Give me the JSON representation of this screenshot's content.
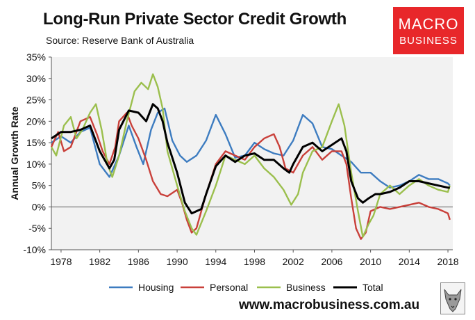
{
  "header": {
    "title": "Long-Run Private Sector Credit Growth",
    "subtitle": "Source: Reserve Bank of Australia"
  },
  "logo": {
    "line1": "MACRO",
    "line2": "BUSINESS",
    "color": "#e8272a"
  },
  "footer": {
    "website": "www.macrobusiness.com.au"
  },
  "chart_data": {
    "type": "line",
    "ylabel": "Annual Growth Rate",
    "xlabel": "",
    "xlim": [
      1977.0,
      2018.5
    ],
    "ylim": [
      -10,
      35
    ],
    "x_ticks": [
      "1978",
      "1982",
      "1986",
      "1990",
      "1994",
      "1998",
      "2002",
      "2006",
      "2010",
      "2014",
      "2018"
    ],
    "y_ticks": [
      "-10%",
      "-5%",
      "0%",
      "5%",
      "10%",
      "15%",
      "20%",
      "25%",
      "30%",
      "35%"
    ],
    "grid": false,
    "plot_background": "#f2f2f2",
    "legend_position": "bottom",
    "series": [
      {
        "name": "Housing",
        "color": "#3d7cc0",
        "points": [
          [
            1977.0,
            15
          ],
          [
            1978.0,
            16.5
          ],
          [
            1979.0,
            15
          ],
          [
            1980.0,
            17.5
          ],
          [
            1981.0,
            18.5
          ],
          [
            1982.0,
            10
          ],
          [
            1983.0,
            7
          ],
          [
            1984.0,
            12
          ],
          [
            1985.0,
            19
          ],
          [
            1985.8,
            14
          ],
          [
            1986.5,
            10
          ],
          [
            1987.3,
            18
          ],
          [
            1988.0,
            22
          ],
          [
            1988.7,
            23
          ],
          [
            1989.5,
            15.5
          ],
          [
            1990.3,
            12
          ],
          [
            1991.0,
            10.5
          ],
          [
            1992.0,
            12
          ],
          [
            1993.0,
            15.5
          ],
          [
            1994.0,
            21.5
          ],
          [
            1995.0,
            17
          ],
          [
            1996.0,
            11.5
          ],
          [
            1997.0,
            12
          ],
          [
            1998.0,
            15
          ],
          [
            1999.0,
            13.5
          ],
          [
            2000.0,
            12.5
          ],
          [
            2001.0,
            12
          ],
          [
            2002.0,
            15.5
          ],
          [
            2003.0,
            21.5
          ],
          [
            2004.0,
            19.5
          ],
          [
            2005.0,
            14
          ],
          [
            2006.0,
            13.5
          ],
          [
            2007.0,
            12
          ],
          [
            2008.0,
            10.5
          ],
          [
            2009.0,
            8
          ],
          [
            2010.0,
            8
          ],
          [
            2011.0,
            6
          ],
          [
            2012.0,
            4.5
          ],
          [
            2013.0,
            5
          ],
          [
            2014.0,
            6
          ],
          [
            2015.0,
            7.5
          ],
          [
            2016.0,
            6.5
          ],
          [
            2017.0,
            6.5
          ],
          [
            2018.0,
            5.5
          ],
          [
            2018.2,
            5
          ]
        ]
      },
      {
        "name": "Personal",
        "color": "#c9403a",
        "points": [
          [
            1977.0,
            14
          ],
          [
            1977.7,
            17.5
          ],
          [
            1978.3,
            13
          ],
          [
            1979.0,
            14
          ],
          [
            1980.0,
            20
          ],
          [
            1981.0,
            21
          ],
          [
            1981.7,
            17
          ],
          [
            1982.3,
            13
          ],
          [
            1983.0,
            10
          ],
          [
            1983.6,
            14
          ],
          [
            1984.0,
            20
          ],
          [
            1984.8,
            22
          ],
          [
            1985.3,
            19
          ],
          [
            1986.0,
            16
          ],
          [
            1986.8,
            11
          ],
          [
            1987.5,
            6
          ],
          [
            1988.3,
            3
          ],
          [
            1989.0,
            2.5
          ],
          [
            1990.0,
            4
          ],
          [
            1990.5,
            1
          ],
          [
            1991.0,
            -3
          ],
          [
            1991.5,
            -6
          ],
          [
            1992.0,
            -5
          ],
          [
            1993.0,
            3
          ],
          [
            1994.0,
            10
          ],
          [
            1995.0,
            13
          ],
          [
            1996.0,
            12
          ],
          [
            1997.0,
            11
          ],
          [
            1998.0,
            14
          ],
          [
            1999.0,
            16
          ],
          [
            2000.0,
            17
          ],
          [
            2000.6,
            14
          ],
          [
            2001.2,
            9
          ],
          [
            2002.0,
            8
          ],
          [
            2003.0,
            12
          ],
          [
            2004.0,
            14
          ],
          [
            2005.0,
            11
          ],
          [
            2006.0,
            13
          ],
          [
            2007.0,
            13
          ],
          [
            2007.5,
            10
          ],
          [
            2008.0,
            2
          ],
          [
            2008.5,
            -5
          ],
          [
            2009.0,
            -7.5
          ],
          [
            2009.5,
            -6
          ],
          [
            2010.0,
            -1
          ],
          [
            2011.0,
            0
          ],
          [
            2012.0,
            -0.5
          ],
          [
            2013.0,
            0
          ],
          [
            2014.0,
            0.5
          ],
          [
            2015.0,
            1
          ],
          [
            2016.0,
            0
          ],
          [
            2017.0,
            -0.5
          ],
          [
            2018.0,
            -1.5
          ],
          [
            2018.2,
            -3
          ]
        ]
      },
      {
        "name": "Business",
        "color": "#9bbf4d",
        "points": [
          [
            1977.0,
            14
          ],
          [
            1977.5,
            12
          ],
          [
            1978.3,
            19
          ],
          [
            1979.0,
            21
          ],
          [
            1979.6,
            16
          ],
          [
            1980.2,
            18
          ],
          [
            1981.0,
            22
          ],
          [
            1981.6,
            24
          ],
          [
            1982.2,
            18
          ],
          [
            1982.8,
            10
          ],
          [
            1983.3,
            7
          ],
          [
            1984.0,
            12
          ],
          [
            1984.8,
            20
          ],
          [
            1985.6,
            27
          ],
          [
            1986.3,
            29
          ],
          [
            1987.0,
            27.5
          ],
          [
            1987.5,
            31
          ],
          [
            1988.0,
            28
          ],
          [
            1988.5,
            23
          ],
          [
            1989.0,
            13
          ],
          [
            1990.0,
            5
          ],
          [
            1990.8,
            -1
          ],
          [
            1991.5,
            -5
          ],
          [
            1992.0,
            -6.5
          ],
          [
            1993.0,
            -1
          ],
          [
            1994.0,
            5
          ],
          [
            1995.0,
            12
          ],
          [
            1996.0,
            11
          ],
          [
            1997.0,
            10
          ],
          [
            1998.0,
            12
          ],
          [
            1999.0,
            9
          ],
          [
            2000.0,
            7
          ],
          [
            2001.0,
            4
          ],
          [
            2001.8,
            0.5
          ],
          [
            2002.5,
            3
          ],
          [
            2003.0,
            8
          ],
          [
            2004.0,
            13
          ],
          [
            2005.0,
            14
          ],
          [
            2006.0,
            20
          ],
          [
            2006.7,
            24
          ],
          [
            2007.3,
            19
          ],
          [
            2008.0,
            8
          ],
          [
            2008.7,
            -1
          ],
          [
            2009.2,
            -7
          ],
          [
            2009.8,
            -4
          ],
          [
            2010.3,
            -2
          ],
          [
            2011.0,
            3
          ],
          [
            2012.0,
            5
          ],
          [
            2013.0,
            3
          ],
          [
            2014.0,
            5
          ],
          [
            2015.0,
            6.5
          ],
          [
            2016.0,
            5
          ],
          [
            2017.0,
            4
          ],
          [
            2018.0,
            3.5
          ],
          [
            2018.2,
            5
          ]
        ]
      },
      {
        "name": "Total",
        "color": "#000000",
        "points": [
          [
            1977.0,
            16
          ],
          [
            1978.0,
            17.5
          ],
          [
            1979.0,
            17.5
          ],
          [
            1980.0,
            18
          ],
          [
            1981.0,
            19
          ],
          [
            1982.0,
            13
          ],
          [
            1983.0,
            9
          ],
          [
            1983.5,
            11
          ],
          [
            1984.0,
            18
          ],
          [
            1985.0,
            22.5
          ],
          [
            1986.0,
            22
          ],
          [
            1986.8,
            20
          ],
          [
            1987.5,
            24
          ],
          [
            1988.0,
            23
          ],
          [
            1988.5,
            20
          ],
          [
            1989.0,
            15
          ],
          [
            1990.0,
            8
          ],
          [
            1990.8,
            1
          ],
          [
            1991.5,
            -1.5
          ],
          [
            1992.0,
            -1
          ],
          [
            1992.5,
            -0.5
          ],
          [
            1993.0,
            3
          ],
          [
            1994.0,
            9.5
          ],
          [
            1995.0,
            12
          ],
          [
            1996.0,
            10.5
          ],
          [
            1997.0,
            12
          ],
          [
            1998.0,
            12.5
          ],
          [
            1999.0,
            11
          ],
          [
            2000.0,
            11
          ],
          [
            2001.0,
            9
          ],
          [
            2001.6,
            8
          ],
          [
            2002.0,
            10
          ],
          [
            2003.0,
            14
          ],
          [
            2004.0,
            15
          ],
          [
            2005.0,
            13
          ],
          [
            2006.0,
            14.5
          ],
          [
            2007.0,
            16
          ],
          [
            2007.5,
            13
          ],
          [
            2008.0,
            6
          ],
          [
            2008.7,
            2
          ],
          [
            2009.2,
            1
          ],
          [
            2009.8,
            2
          ],
          [
            2010.5,
            3
          ],
          [
            2011.0,
            3
          ],
          [
            2012.0,
            3.5
          ],
          [
            2013.0,
            4.5
          ],
          [
            2014.0,
            6
          ],
          [
            2015.0,
            6
          ],
          [
            2016.0,
            5.5
          ],
          [
            2017.0,
            5
          ],
          [
            2018.0,
            4.5
          ],
          [
            2018.2,
            4.5
          ]
        ]
      }
    ]
  }
}
